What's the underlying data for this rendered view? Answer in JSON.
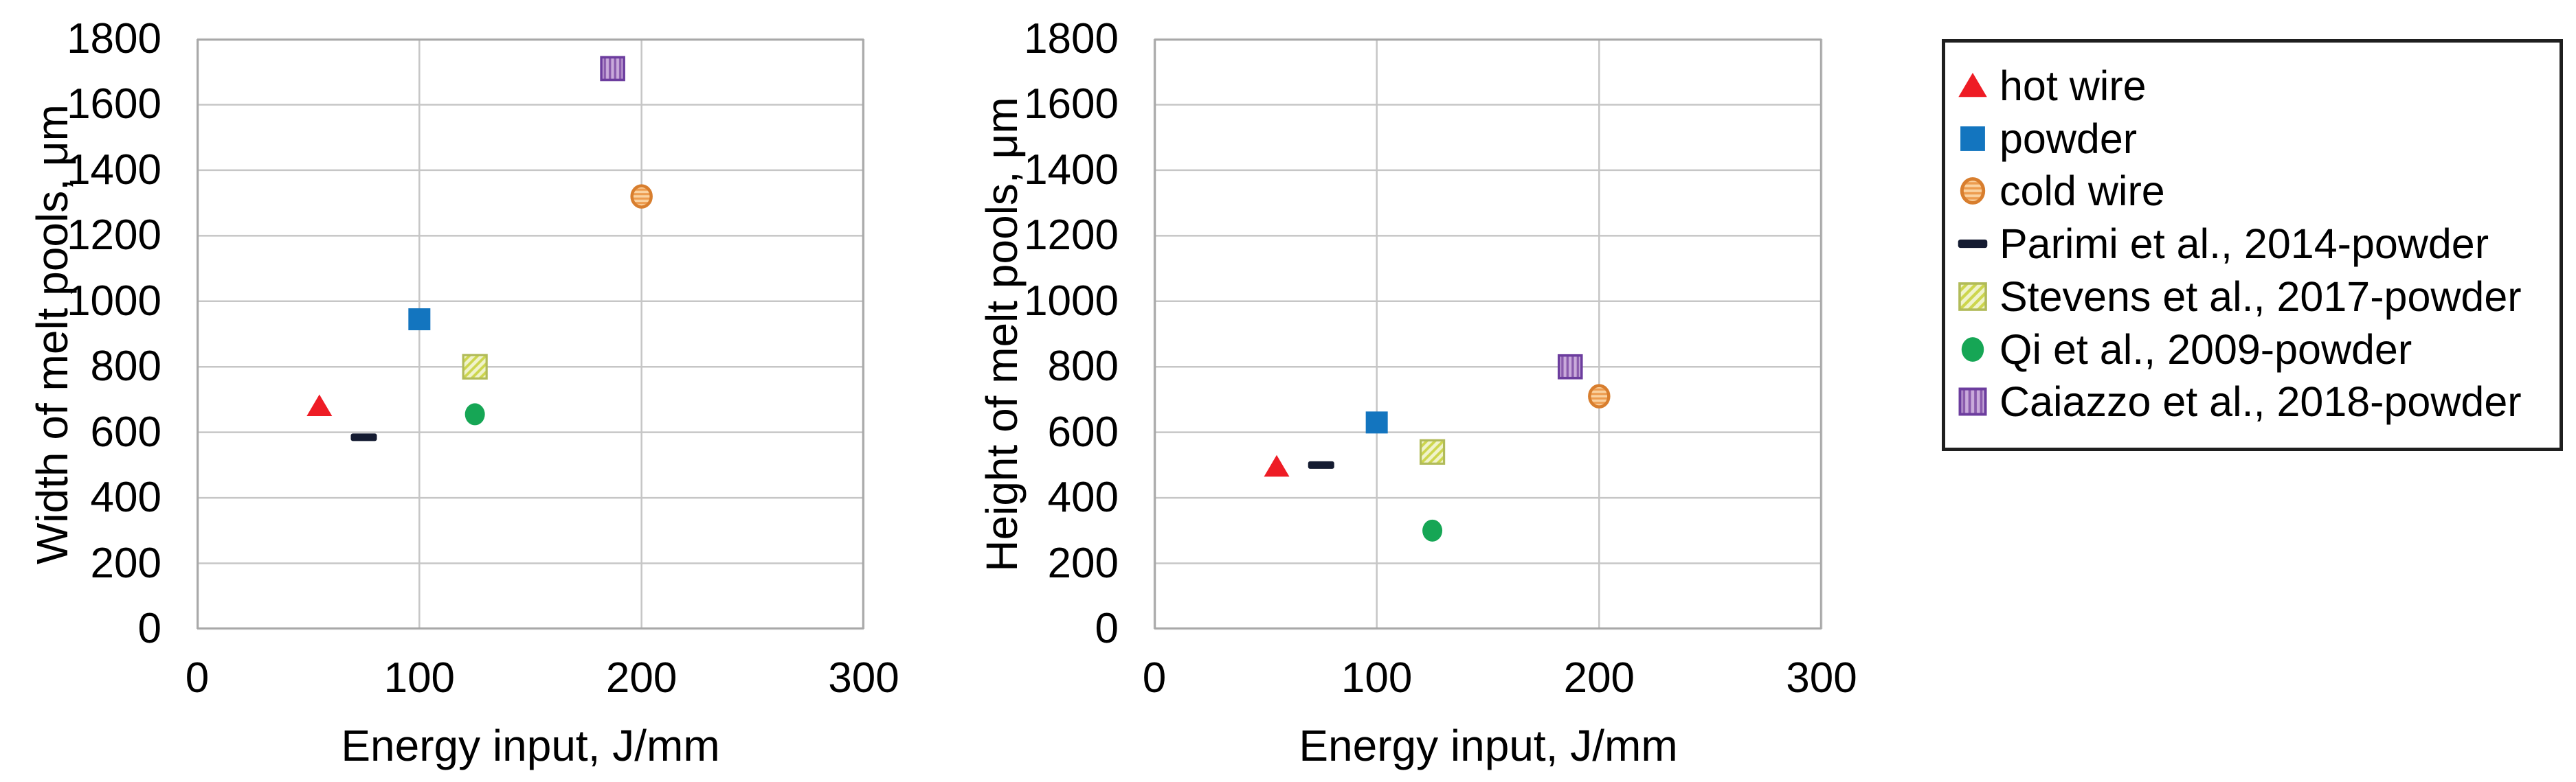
{
  "figure": {
    "background": "#FFFFFF",
    "grid_color": "#C6C6C6",
    "plot_border_color": "#A8A8A8"
  },
  "legend": {
    "border_color": "#1F1F1F",
    "position": "outside-right",
    "items": [
      {
        "label": "hot wire",
        "marker": "triangle",
        "color": "#EE1C25"
      },
      {
        "label": "powder",
        "marker": "square",
        "color": "#1375BF"
      },
      {
        "label": "cold wire",
        "marker": "circle-hstripe",
        "fill": "#FAD2A0",
        "stripe": "#ED9C4F",
        "border": "#D87E2E"
      },
      {
        "label": "Parimi et al., 2014-powder",
        "marker": "dash",
        "color": "#141B31"
      },
      {
        "label": "Stevens et al., 2017-powder",
        "marker": "square-hatch",
        "fill": "#F0F3CC",
        "stripe": "#CDD64D",
        "border": "#B1BB59"
      },
      {
        "label": "Qi et al., 2009-powder",
        "marker": "circle",
        "color": "#16A655"
      },
      {
        "label": "Caiazzo et al., 2018-powder",
        "marker": "square-vstripe",
        "fill": "#C9AADB",
        "stripe": "#8A5BAD",
        "border": "#6C3D9E"
      }
    ]
  },
  "chart_data": [
    {
      "type": "scatter",
      "title": "",
      "xlabel": "Energy input, J/mm",
      "ylabel": "Width of melt pools, μm",
      "xlim": [
        0,
        300
      ],
      "ylim": [
        0,
        1800
      ],
      "xticks": [
        0,
        100,
        200,
        300
      ],
      "yticks": [
        0,
        200,
        400,
        600,
        800,
        1000,
        1200,
        1400,
        1600,
        1800
      ],
      "grid": true,
      "legend_position": "outside-right",
      "series": [
        {
          "name": "hot wire",
          "points": [
            [
              55,
              680
            ]
          ]
        },
        {
          "name": "powder",
          "points": [
            [
              100,
              945
            ]
          ]
        },
        {
          "name": "cold wire",
          "points": [
            [
              200,
              1320
            ]
          ]
        },
        {
          "name": "Parimi et al., 2014-powder",
          "points": [
            [
              75,
              585
            ]
          ]
        },
        {
          "name": "Stevens et al., 2017-powder",
          "points": [
            [
              125,
              800
            ]
          ]
        },
        {
          "name": "Qi et al., 2009-powder",
          "points": [
            [
              125,
              655
            ]
          ]
        },
        {
          "name": "Caiazzo et al., 2018-powder",
          "points": [
            [
              187,
              1710
            ]
          ]
        }
      ]
    },
    {
      "type": "scatter",
      "title": "",
      "xlabel": "Energy input, J/mm",
      "ylabel": "Height of melt pools, μm",
      "xlim": [
        0,
        300
      ],
      "ylim": [
        0,
        1800
      ],
      "xticks": [
        0,
        100,
        200,
        300
      ],
      "yticks": [
        0,
        200,
        400,
        600,
        800,
        1000,
        1200,
        1400,
        1600,
        1800
      ],
      "grid": true,
      "legend_position": "outside-right",
      "series": [
        {
          "name": "hot wire",
          "points": [
            [
              55,
              495
            ]
          ]
        },
        {
          "name": "powder",
          "points": [
            [
              100,
              630
            ]
          ]
        },
        {
          "name": "cold wire",
          "points": [
            [
              200,
              710
            ]
          ]
        },
        {
          "name": "Parimi et al., 2014-powder",
          "points": [
            [
              75,
              500
            ]
          ]
        },
        {
          "name": "Stevens et al., 2017-powder",
          "points": [
            [
              125,
              540
            ]
          ]
        },
        {
          "name": "Qi et al., 2009-powder",
          "points": [
            [
              125,
              300
            ]
          ]
        },
        {
          "name": "Caiazzo et al., 2018-powder",
          "points": [
            [
              187,
              800
            ]
          ]
        }
      ]
    }
  ]
}
